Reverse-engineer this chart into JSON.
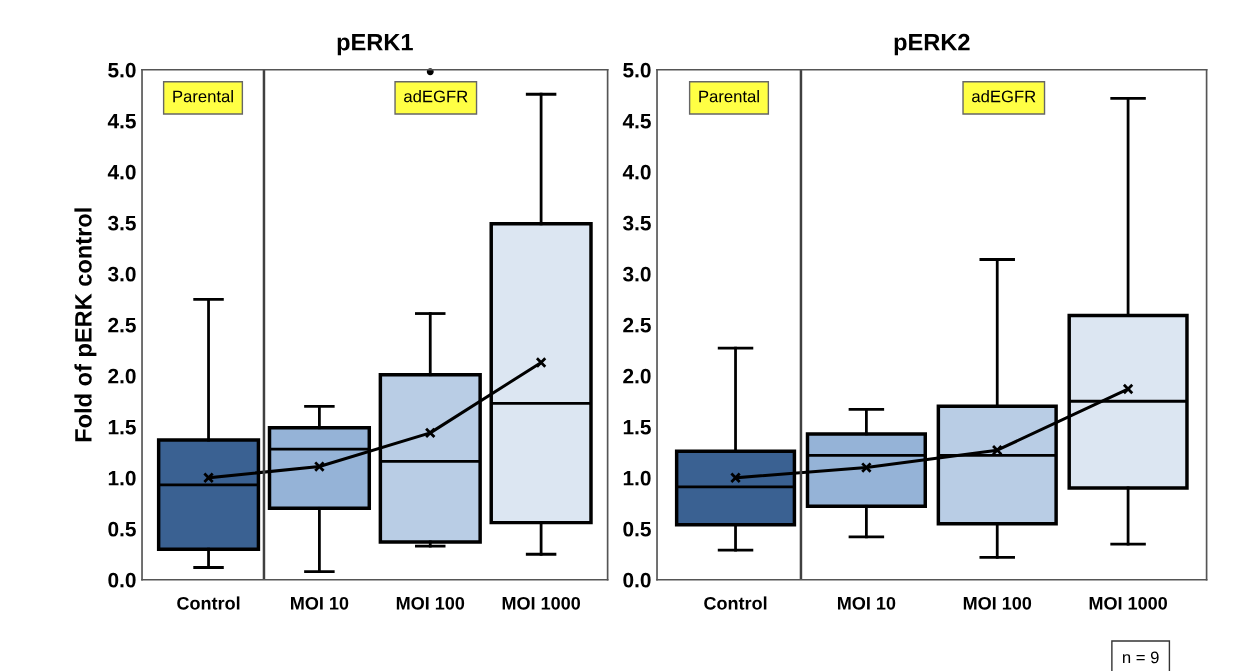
{
  "chart_data": [
    {
      "type": "box",
      "title": "pERK1",
      "ylabel": "Fold of pERK control",
      "categories": [
        "Control",
        "MOI 10",
        "MOI 100",
        "MOI 1000"
      ],
      "colors": [
        "#3a6192",
        "#95b3d7",
        "#b9cde5",
        "#dce6f2"
      ],
      "boxes": [
        {
          "low": 0.12,
          "q1": 0.3,
          "median": 0.93,
          "q3": 1.37,
          "high": 2.75,
          "mean": 1.0
        },
        {
          "low": 0.08,
          "q1": 0.7,
          "median": 1.28,
          "q3": 1.49,
          "high": 1.7,
          "mean": 1.11
        },
        {
          "low": 0.33,
          "q1": 0.37,
          "median": 1.16,
          "q3": 2.01,
          "high": 2.61,
          "mean": 1.44,
          "outliers": [
            4.98
          ]
        },
        {
          "low": 0.25,
          "q1": 0.56,
          "median": 1.73,
          "q3": 3.49,
          "high": 4.76,
          "mean": 2.13
        }
      ],
      "series": [
        {
          "type": "line",
          "color": "#000000",
          "values": [
            1.0,
            1.11,
            1.44,
            2.13
          ]
        }
      ],
      "ylim": [
        0,
        5
      ],
      "yticks": [
        {
          "value": 0,
          "label": "0.0"
        },
        {
          "value": 0.5,
          "label": "0.5"
        },
        {
          "value": 1,
          "label": "1.0"
        },
        {
          "value": 1.5,
          "label": "1.5"
        },
        {
          "value": 2,
          "label": "2.0"
        },
        {
          "value": 2.5,
          "label": "2.5"
        },
        {
          "value": 3,
          "label": "3.0"
        },
        {
          "value": 3.5,
          "label": "3.5"
        },
        {
          "value": 4,
          "label": "4.0"
        },
        {
          "value": 4.5,
          "label": "4.5"
        },
        {
          "value": 5,
          "label": "5.0"
        }
      ],
      "annotations": [
        "Parental",
        "adEGFR"
      ],
      "grid": false,
      "legend": false
    },
    {
      "type": "box",
      "title": "pERK2",
      "categories": [
        "Control",
        "MOI 10",
        "MOI 100",
        "MOI 1000"
      ],
      "colors": [
        "#3a6192",
        "#95b3d7",
        "#b9cde5",
        "#dce6f2"
      ],
      "boxes": [
        {
          "low": 0.29,
          "q1": 0.54,
          "median": 0.91,
          "q3": 1.26,
          "high": 2.27,
          "mean": 1.0
        },
        {
          "low": 0.42,
          "q1": 0.72,
          "median": 1.22,
          "q3": 1.43,
          "high": 1.67,
          "mean": 1.1
        },
        {
          "low": 0.22,
          "q1": 0.55,
          "median": 1.22,
          "q3": 1.7,
          "high": 3.14,
          "mean": 1.27
        },
        {
          "low": 0.35,
          "q1": 0.9,
          "median": 1.75,
          "q3": 2.59,
          "high": 4.72,
          "mean": 1.87
        }
      ],
      "series": [
        {
          "type": "line",
          "color": "#000000",
          "values": [
            1.0,
            1.1,
            1.27,
            1.87
          ]
        }
      ],
      "ylim": [
        0,
        5
      ],
      "yticks": [
        {
          "value": 0,
          "label": "0.0"
        },
        {
          "value": 0.5,
          "label": "0.5"
        },
        {
          "value": 1,
          "label": "1.0"
        },
        {
          "value": 1.5,
          "label": "1.5"
        },
        {
          "value": 2,
          "label": "2.0"
        },
        {
          "value": 2.5,
          "label": "2.5"
        },
        {
          "value": 3,
          "label": "3.0"
        },
        {
          "value": 3.5,
          "label": "3.5"
        },
        {
          "value": 4,
          "label": "4.0"
        },
        {
          "value": 4.5,
          "label": "4.5"
        },
        {
          "value": 5,
          "label": "5.0"
        }
      ],
      "annotations": [
        "Parental",
        "adEGFR",
        "n = 9"
      ],
      "grid": false,
      "legend": false
    }
  ]
}
